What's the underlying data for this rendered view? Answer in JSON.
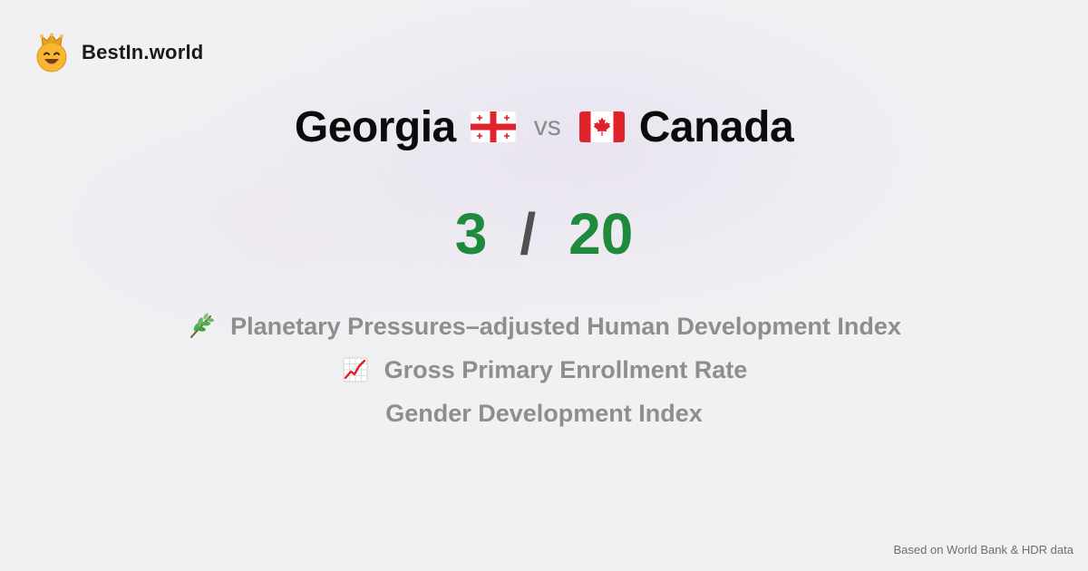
{
  "brand": {
    "name": "BestIn.world",
    "logo_icon": "crown-smiley-icon"
  },
  "comparison": {
    "country_a": {
      "name": "Georgia",
      "flag_icon": "georgia-flag-icon"
    },
    "separator": "vs",
    "country_b": {
      "name": "Canada",
      "flag_icon": "canada-flag-icon"
    }
  },
  "score": {
    "a": "3",
    "separator": "/",
    "b": "20",
    "color": "#1f8a3b"
  },
  "metrics": [
    {
      "label": "Planetary Pressures–adjusted Human Development Index",
      "icon": "herb-icon"
    },
    {
      "label": "Gross Primary Enrollment Rate",
      "icon": "chart-increasing-icon"
    },
    {
      "label": "Gender Development Index",
      "icon": ""
    }
  ],
  "footer": {
    "source": "Based on World Bank & HDR data"
  }
}
